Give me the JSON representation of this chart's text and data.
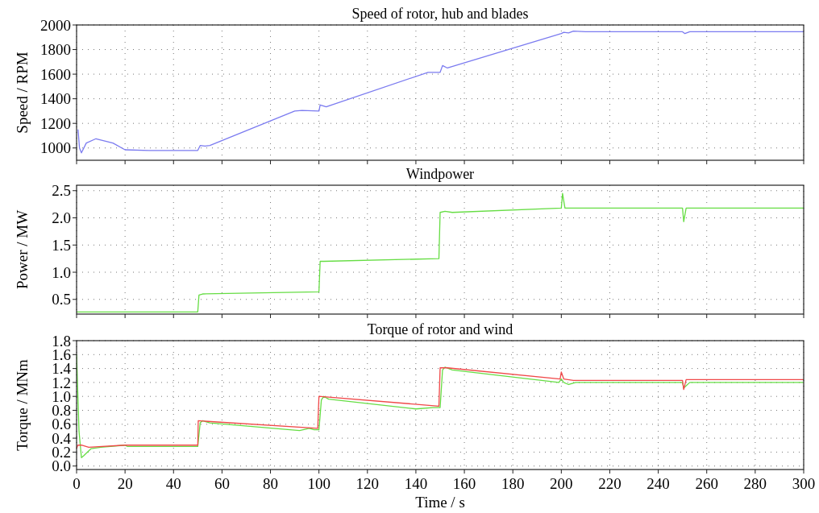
{
  "chart_data": [
    {
      "type": "line",
      "title": "Speed of rotor, hub and blades",
      "ylabel": "Speed / RPM",
      "xlim": [
        0,
        300
      ],
      "xticks": [
        0,
        20,
        40,
        60,
        80,
        100,
        120,
        140,
        160,
        180,
        200,
        220,
        240,
        260,
        280,
        300
      ],
      "ylim": [
        900,
        2000
      ],
      "yticks": [
        1000,
        1200,
        1400,
        1600,
        1800,
        2000
      ],
      "grid": true,
      "tick_labels": "y",
      "series": [
        {
          "color": "#7b7bf0",
          "x": [
            0.6,
            1.2,
            2,
            4,
            8,
            15,
            20,
            30,
            49,
            50,
            51,
            53,
            55,
            90,
            93,
            100,
            100.5,
            103,
            145,
            150,
            151,
            153,
            200,
            201,
            203,
            205,
            210,
            250,
            251,
            253,
            300
          ],
          "values": [
            1150,
            1000,
            960,
            1040,
            1075,
            1040,
            985,
            980,
            980,
            980,
            1020,
            1015,
            1020,
            1300,
            1305,
            1300,
            1350,
            1335,
            1615,
            1615,
            1670,
            1650,
            1930,
            1940,
            1935,
            1950,
            1945,
            1945,
            1930,
            1945,
            1945
          ]
        }
      ]
    },
    {
      "type": "line",
      "title": "Windpower",
      "ylabel": "Power / MW",
      "xlim": [
        0,
        300
      ],
      "xticks": [
        0,
        20,
        40,
        60,
        80,
        100,
        120,
        140,
        160,
        180,
        200,
        220,
        240,
        260,
        280,
        300
      ],
      "ylim": [
        0.23,
        2.6
      ],
      "yticks": [
        0.5,
        {
          "value": 1,
          "label": "1.0"
        },
        1.5,
        {
          "value": 2,
          "label": "2.0"
        },
        2.5
      ],
      "grid": true,
      "tick_labels": "y",
      "series": [
        {
          "color": "#66dd44",
          "x": [
            0,
            50,
            50.5,
            52,
            100,
            100.5,
            102,
            149.5,
            150,
            152,
            155,
            200,
            200.5,
            201.5,
            250,
            250.5,
            251.5,
            300
          ],
          "values": [
            0.27,
            0.27,
            0.58,
            0.6,
            0.64,
            1.2,
            1.2,
            1.25,
            2.1,
            2.12,
            2.1,
            2.18,
            2.45,
            2.18,
            2.18,
            1.93,
            2.18,
            2.18
          ]
        }
      ]
    },
    {
      "type": "line",
      "title": "Torque of rotor and wind",
      "xlabel": "Time / s",
      "ylabel": "Torque / MNm",
      "xlim": [
        0,
        300
      ],
      "xticks": [
        0,
        20,
        40,
        60,
        80,
        100,
        120,
        140,
        160,
        180,
        200,
        220,
        240,
        260,
        280,
        300
      ],
      "ylim": [
        -0.05,
        1.8
      ],
      "yticks": [
        {
          "value": 0,
          "label": "0.0"
        },
        0.2,
        0.4,
        0.6,
        0.8,
        {
          "value": 1,
          "label": "1.0"
        },
        1.2,
        1.4,
        1.6,
        1.8
      ],
      "grid": true,
      "series": [
        {
          "color": "#66dd44",
          "x": [
            0,
            1,
            2,
            3,
            6,
            10,
            20,
            21,
            50,
            51,
            52,
            55,
            92,
            96,
            98,
            100,
            101,
            102,
            104,
            140,
            147,
            150,
            151,
            152,
            155,
            199,
            200,
            201,
            203,
            206,
            250,
            250.5,
            253,
            300
          ],
          "values": [
            1.6,
            0.5,
            0.12,
            0.15,
            0.25,
            0.27,
            0.3,
            0.28,
            0.28,
            0.62,
            0.65,
            0.62,
            0.51,
            0.54,
            0.52,
            0.52,
            0.95,
            1.0,
            0.96,
            0.82,
            0.84,
            0.84,
            1.38,
            1.42,
            1.38,
            1.2,
            1.25,
            1.2,
            1.17,
            1.2,
            1.2,
            1.12,
            1.2,
            1.2
          ]
        },
        {
          "color": "#f04848",
          "x": [
            0,
            0.5,
            2,
            5,
            20,
            50,
            50.2,
            99.5,
            100,
            149.5,
            150,
            153,
            199.5,
            200,
            201,
            205,
            250,
            250.5,
            251.5,
            300
          ],
          "values": [
            0.25,
            0.3,
            0.3,
            0.27,
            0.3,
            0.3,
            0.65,
            0.54,
            1.0,
            0.86,
            1.41,
            1.41,
            1.25,
            1.35,
            1.25,
            1.23,
            1.23,
            1.1,
            1.24,
            1.24
          ]
        }
      ]
    }
  ]
}
